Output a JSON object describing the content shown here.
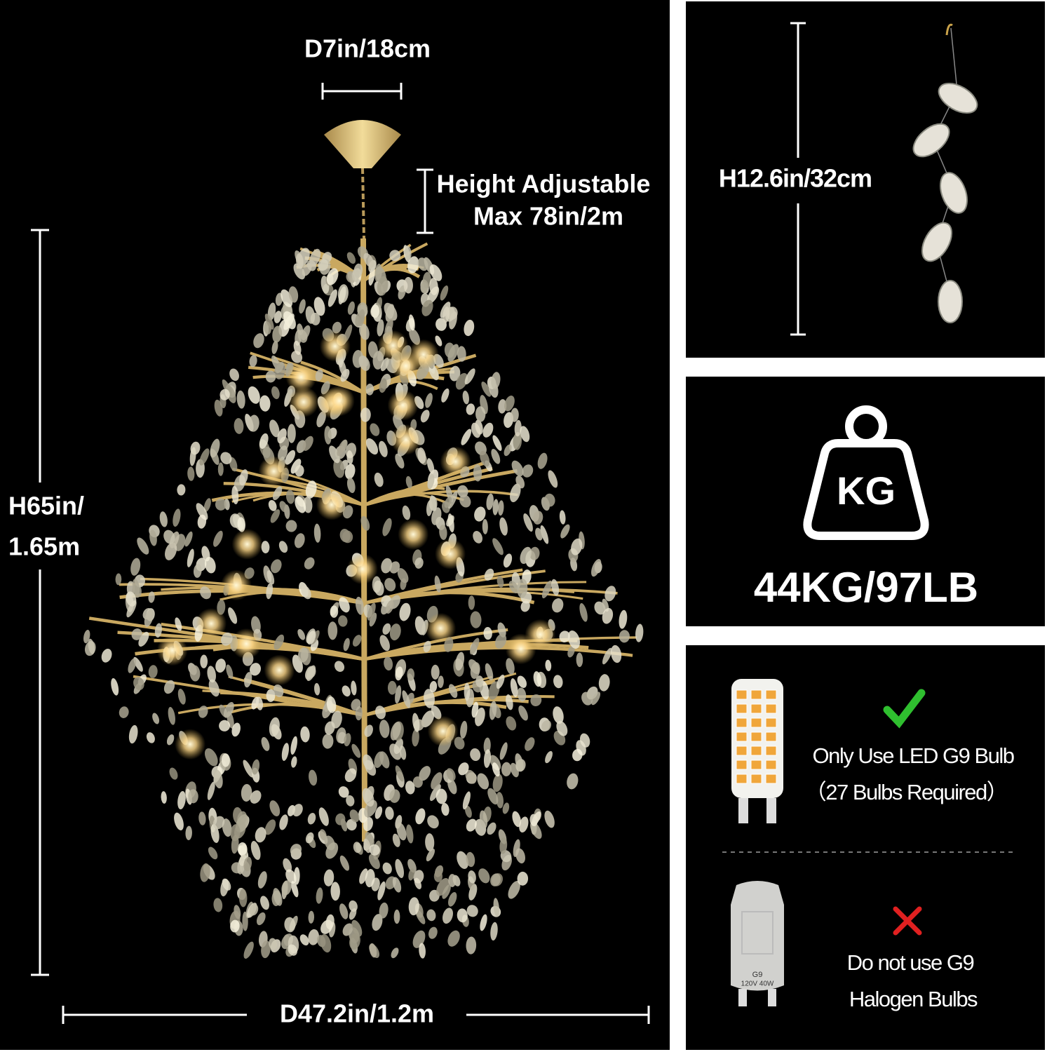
{
  "main": {
    "top_diameter": "D7in/18cm",
    "height_adjustable": [
      "Height Adjustable",
      "Max 78in/2m"
    ],
    "height": [
      "H65in/",
      "1.65m"
    ],
    "diameter": "D47.2in/1.2m"
  },
  "crystal_strand": {
    "height": "H12.6in/32cm"
  },
  "weight": {
    "icon_label": "KG",
    "value": "44KG/97LB"
  },
  "bulbs": {
    "led": {
      "text": [
        "Only Use LED G9 Bulb",
        "（27 Bulbs Required）"
      ]
    },
    "halogen": {
      "printed": [
        "G9",
        "120V 40W"
      ],
      "text": [
        "Do not use G9",
        "Halogen Bulbs"
      ]
    }
  }
}
